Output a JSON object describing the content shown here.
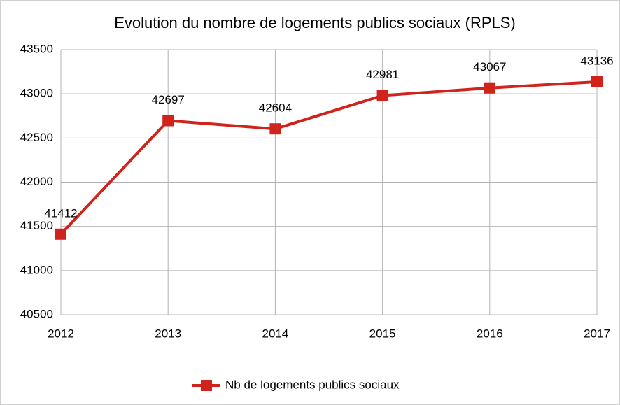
{
  "chart_data": {
    "type": "line",
    "title": "Evolution du nombre de logements publics sociaux (RPLS)",
    "categories": [
      "2012",
      "2013",
      "2014",
      "2015",
      "2016",
      "2017"
    ],
    "series": [
      {
        "name": "Nb de logements publics sociaux",
        "color": "#d0231b",
        "values": [
          41412,
          42697,
          42604,
          42981,
          43067,
          43136
        ]
      }
    ],
    "ylim": [
      40500,
      43500
    ],
    "yticks": [
      40500,
      41000,
      41500,
      42000,
      42500,
      43000,
      43500
    ],
    "grid": true,
    "legend": "bottom"
  }
}
